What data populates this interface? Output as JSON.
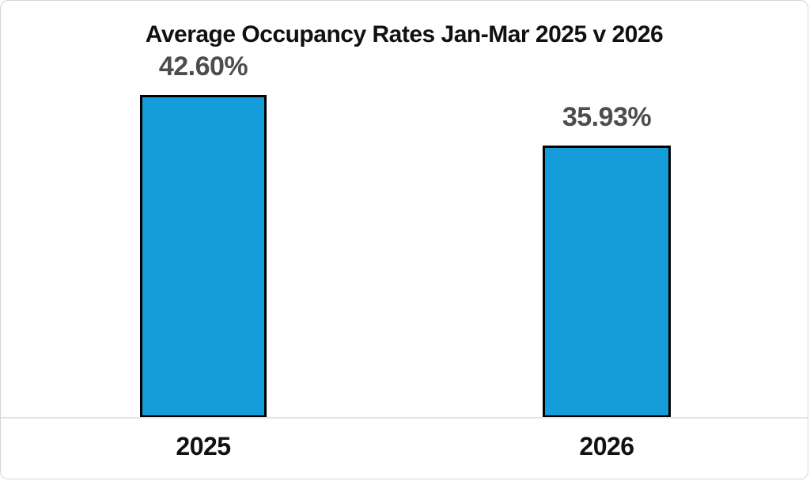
{
  "chart_data": {
    "type": "bar",
    "title": "Average Occupancy Rates Jan-Mar 2025 v 2026",
    "categories": [
      "2025",
      "2026"
    ],
    "values": [
      42.6,
      35.93
    ],
    "data_labels": [
      "42.60%",
      "35.93%"
    ],
    "xlabel": "",
    "ylabel": "",
    "ylim": [
      0,
      55
    ],
    "grid": false,
    "legend": false,
    "y_axis_visible": false,
    "bar_color": "#149dd9",
    "bar_border_color": "#000000",
    "data_label_color": "#4d4d4d",
    "title_color": "#111111",
    "axis_line_color": "#e2e2e2"
  }
}
